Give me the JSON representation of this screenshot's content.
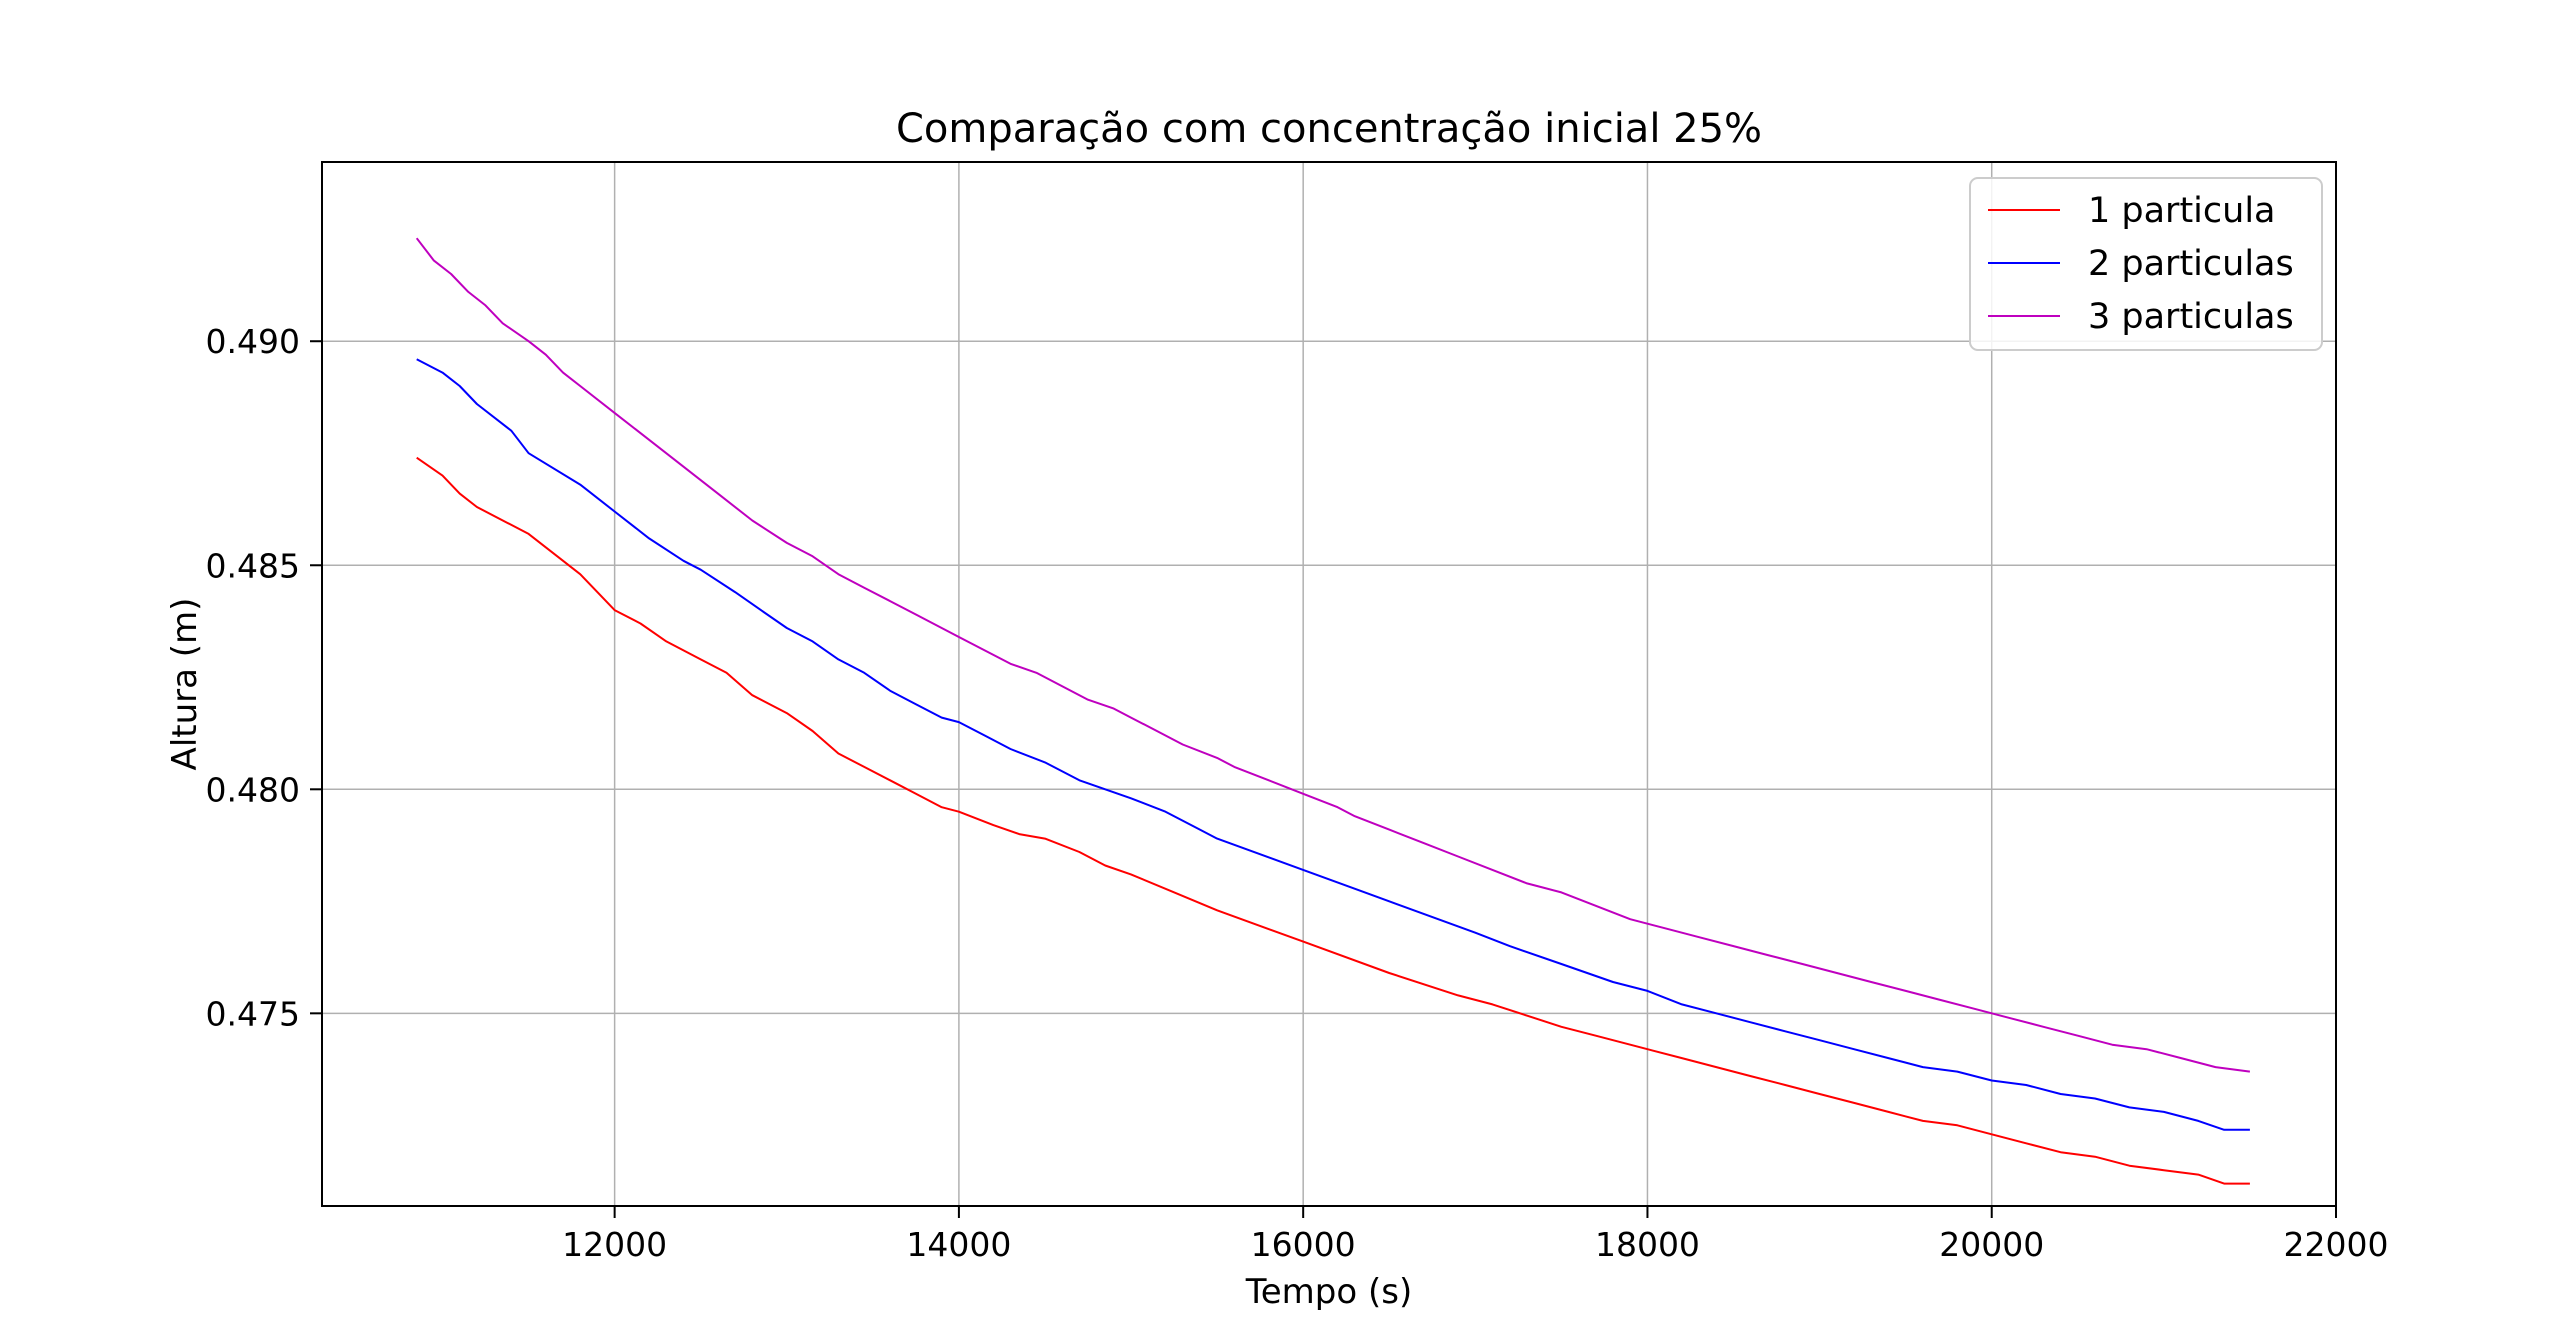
{
  "chart_data": {
    "type": "line",
    "title": "Comparação com concentração inicial 25%",
    "xlabel": "Tempo (s)",
    "ylabel": "Altura (m)",
    "xlim": [
      10300,
      22000
    ],
    "ylim": [
      0.4707,
      0.494
    ],
    "xticks": [
      12000,
      14000,
      16000,
      18000,
      20000,
      22000
    ],
    "xtick_labels": [
      "12000",
      "14000",
      "16000",
      "18000",
      "20000",
      "22000"
    ],
    "yticks": [
      0.475,
      0.48,
      0.485,
      0.49
    ],
    "ytick_labels": [
      "0.475",
      "0.480",
      "0.485",
      "0.490"
    ],
    "grid": true,
    "legend_position": "top-right",
    "series": [
      {
        "name": "1 particula",
        "color": "#ff0000",
        "x": [
          10850,
          11000,
          11100,
          11200,
          11500,
          11800,
          12000,
          12150,
          12300,
          12500,
          12650,
          12800,
          13000,
          13150,
          13300,
          13450,
          13600,
          13750,
          13900,
          14000,
          14200,
          14350,
          14500,
          14700,
          14850,
          15000,
          15500,
          16000,
          16500,
          16900,
          17100,
          17500,
          17700,
          18000,
          18200,
          18400,
          18600,
          18800,
          19000,
          19200,
          19400,
          19600,
          19800,
          20000,
          20200,
          20400,
          20600,
          20800,
          21000,
          21200,
          21350,
          21500
        ],
        "y": [
          0.4874,
          0.487,
          0.4866,
          0.4863,
          0.4857,
          0.4848,
          0.484,
          0.4837,
          0.4833,
          0.4829,
          0.4826,
          0.4821,
          0.4817,
          0.4813,
          0.4808,
          0.4805,
          0.4802,
          0.4799,
          0.4796,
          0.4795,
          0.4792,
          0.479,
          0.4789,
          0.4786,
          0.4783,
          0.4781,
          0.4773,
          0.4766,
          0.4759,
          0.4754,
          0.4752,
          0.4747,
          0.4745,
          0.4742,
          0.474,
          0.4738,
          0.4736,
          0.4734,
          0.4732,
          0.473,
          0.4728,
          0.4726,
          0.4725,
          0.4723,
          0.4721,
          0.4719,
          0.4718,
          0.4716,
          0.4715,
          0.4714,
          0.4712,
          0.4712
        ]
      },
      {
        "name": "2 particulas",
        "color": "#0000ff",
        "x": [
          10850,
          11000,
          11100,
          11200,
          11400,
          11500,
          11800,
          12000,
          12200,
          12400,
          12500,
          12700,
          12850,
          13000,
          13150,
          13300,
          13450,
          13600,
          13750,
          13900,
          14000,
          14150,
          14300,
          14500,
          14700,
          14850,
          15000,
          15200,
          15400,
          15500,
          16000,
          16500,
          17000,
          17200,
          17500,
          17800,
          18000,
          18200,
          18400,
          18600,
          18800,
          19000,
          19200,
          19400,
          19600,
          19800,
          20000,
          20200,
          20400,
          20600,
          20800,
          21000,
          21200,
          21350,
          21500
        ],
        "y": [
          0.4896,
          0.4893,
          0.489,
          0.4886,
          0.488,
          0.4875,
          0.4868,
          0.4862,
          0.4856,
          0.4851,
          0.4849,
          0.4844,
          0.484,
          0.4836,
          0.4833,
          0.4829,
          0.4826,
          0.4822,
          0.4819,
          0.4816,
          0.4815,
          0.4812,
          0.4809,
          0.4806,
          0.4802,
          0.48,
          0.4798,
          0.4795,
          0.4791,
          0.4789,
          0.4782,
          0.4775,
          0.4768,
          0.4765,
          0.4761,
          0.4757,
          0.4755,
          0.4752,
          0.475,
          0.4748,
          0.4746,
          0.4744,
          0.4742,
          0.474,
          0.4738,
          0.4737,
          0.4735,
          0.4734,
          0.4732,
          0.4731,
          0.4729,
          0.4728,
          0.4726,
          0.4724,
          0.4724
        ]
      },
      {
        "name": "3 particulas",
        "color": "#bf00bf",
        "x": [
          10850,
          10950,
          11050,
          11150,
          11250,
          11350,
          11500,
          11600,
          11700,
          11800,
          12000,
          12200,
          12400,
          12600,
          12800,
          13000,
          13150,
          13300,
          13450,
          13600,
          13750,
          13900,
          14000,
          14150,
          14300,
          14450,
          14600,
          14750,
          14900,
          15000,
          15150,
          15300,
          15500,
          15600,
          15800,
          16000,
          16200,
          16300,
          16500,
          16700,
          16900,
          17100,
          17300,
          17400,
          17500,
          17700,
          17900,
          18100,
          18300,
          18500,
          18700,
          18900,
          19100,
          19300,
          19500,
          19700,
          19900,
          20100,
          20300,
          20500,
          20700,
          20900,
          21100,
          21300,
          21500
        ],
        "y": [
          0.4923,
          0.4918,
          0.4915,
          0.4911,
          0.4908,
          0.4904,
          0.49,
          0.4897,
          0.4893,
          0.489,
          0.4884,
          0.4878,
          0.4872,
          0.4866,
          0.486,
          0.4855,
          0.4852,
          0.4848,
          0.4845,
          0.4842,
          0.4839,
          0.4836,
          0.4834,
          0.4831,
          0.4828,
          0.4826,
          0.4823,
          0.482,
          0.4818,
          0.4816,
          0.4813,
          0.481,
          0.4807,
          0.4805,
          0.4802,
          0.4799,
          0.4796,
          0.4794,
          0.4791,
          0.4788,
          0.4785,
          0.4782,
          0.4779,
          0.4778,
          0.4777,
          0.4774,
          0.4771,
          0.4769,
          0.4767,
          0.4765,
          0.4763,
          0.4761,
          0.4759,
          0.4757,
          0.4755,
          0.4753,
          0.4751,
          0.4749,
          0.4747,
          0.4745,
          0.4743,
          0.4742,
          0.474,
          0.4738,
          0.4737
        ]
      }
    ]
  }
}
